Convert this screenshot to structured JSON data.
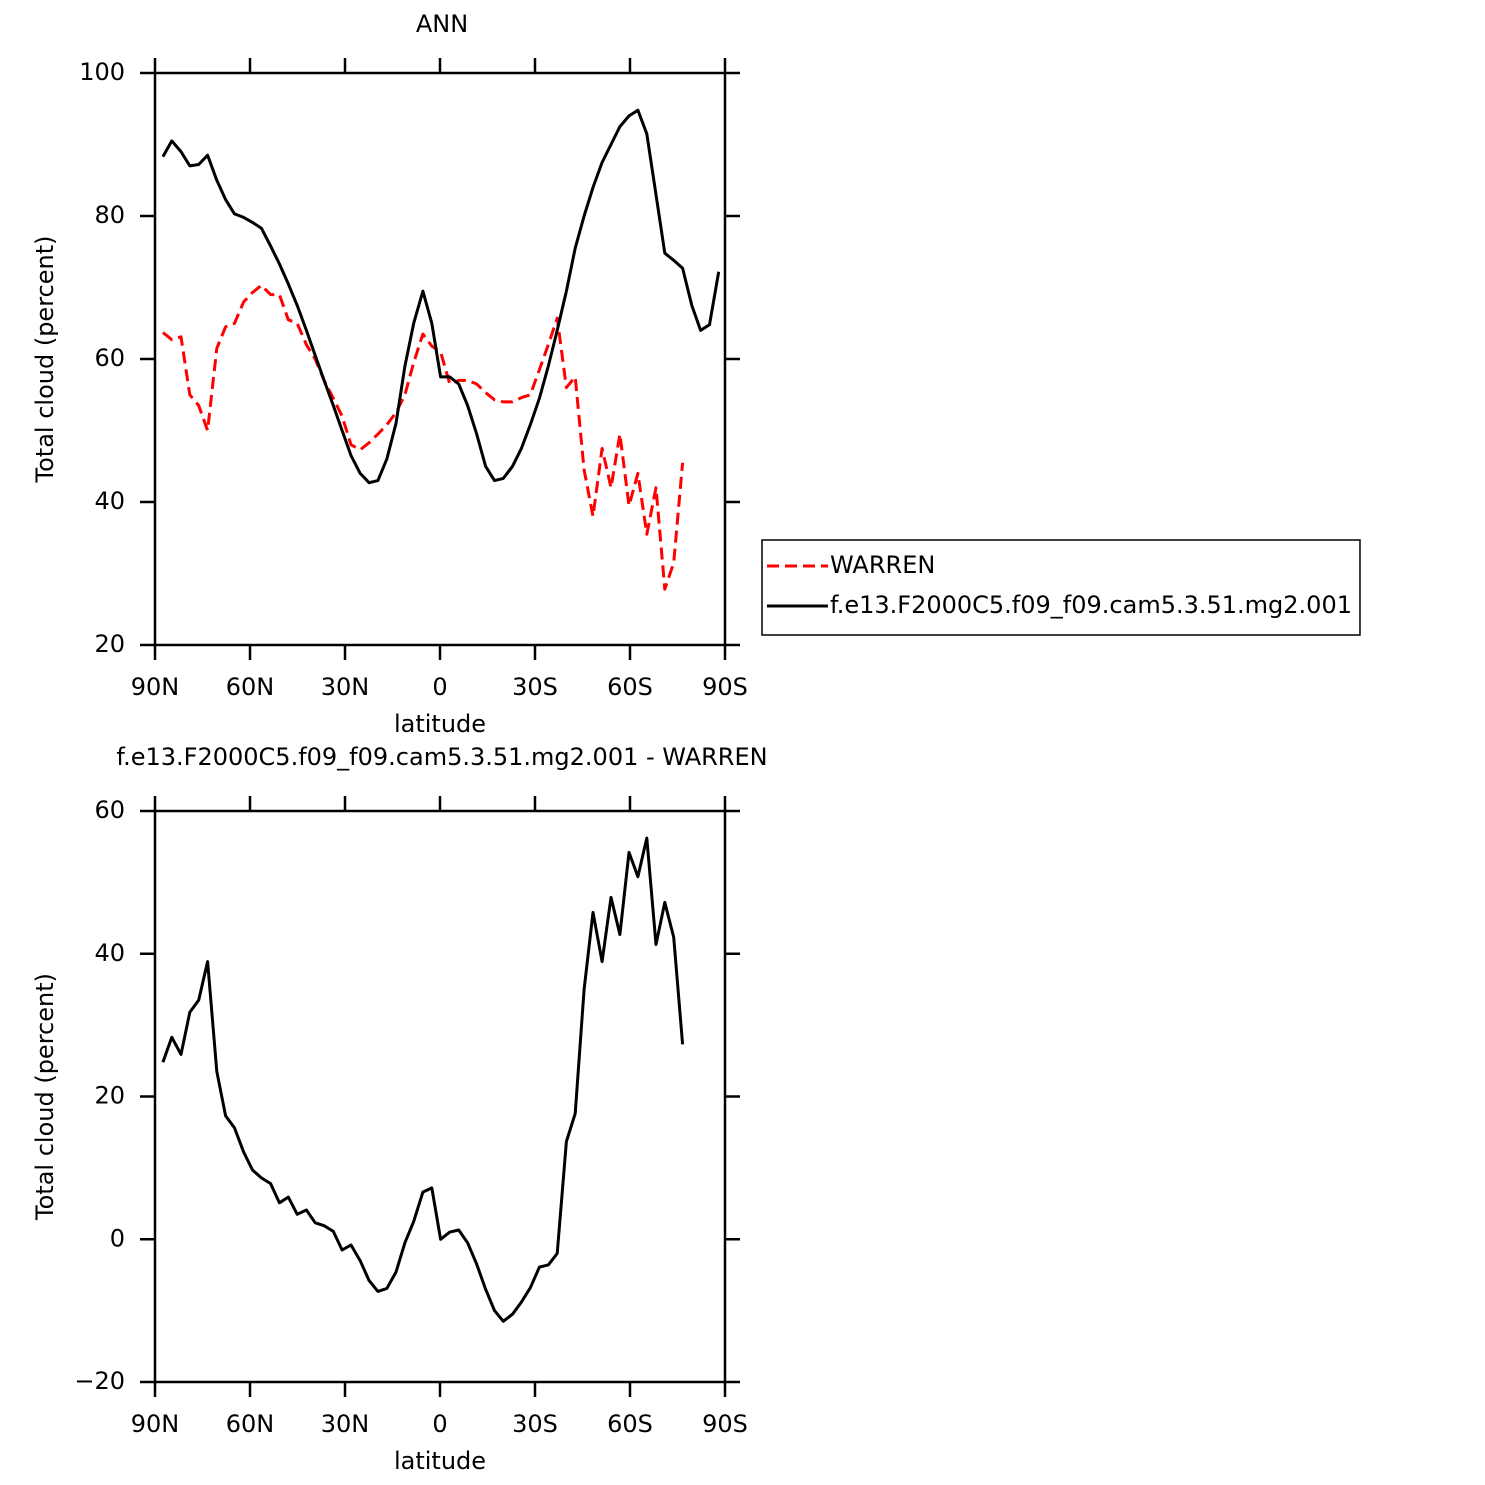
{
  "chart_data": [
    {
      "type": "line",
      "title": "ANN",
      "x_label": "latitude",
      "y_label": "Total cloud (percent)",
      "x": [
        87.5,
        84.7,
        81.8,
        79.0,
        76.2,
        73.4,
        70.5,
        67.7,
        64.9,
        62.0,
        59.2,
        56.4,
        53.5,
        50.7,
        47.9,
        45.1,
        42.2,
        39.4,
        36.6,
        33.7,
        30.9,
        28.1,
        25.2,
        22.4,
        19.6,
        16.8,
        13.9,
        11.1,
        8.3,
        5.4,
        2.6,
        -0.2,
        -3.1,
        -5.9,
        -8.7,
        -11.6,
        -14.4,
        -17.2,
        -20.0,
        -22.9,
        -25.7,
        -28.5,
        -31.4,
        -34.2,
        -37.0,
        -39.9,
        -42.7,
        -45.5,
        -48.3,
        -51.2,
        -54.0,
        -56.8,
        -59.7,
        -62.5,
        -65.3,
        -68.2,
        -71.0,
        -73.8,
        -76.6,
        -79.5,
        -82.3,
        -85.1,
        -88.0
      ],
      "xlim": [
        90,
        -90
      ],
      "xticks": [
        {
          "value": 90,
          "label": "90N"
        },
        {
          "value": 60,
          "label": "60N"
        },
        {
          "value": 30,
          "label": "30N"
        },
        0,
        {
          "value": -30,
          "label": "30S"
        },
        {
          "value": -60,
          "label": "60S"
        },
        {
          "value": -90,
          "label": "90S"
        }
      ],
      "ylim": [
        20,
        100
      ],
      "yticks": [
        20,
        40,
        60,
        80,
        100
      ],
      "legend": "outside-right",
      "series": [
        {
          "name": "WARREN",
          "color": "#ff0000",
          "dashed": true,
          "values": [
            63.7,
            62.7,
            63.1,
            55,
            53.5,
            50,
            61.5,
            64.5,
            65,
            68,
            69.3,
            70.3,
            69,
            69,
            65.5,
            65,
            62,
            60,
            57,
            54.5,
            52,
            48,
            47.3,
            48.3,
            49.5,
            50.8,
            52.5,
            55,
            59.5,
            63.5,
            61.8,
            61,
            56.5,
            57,
            57,
            56.5,
            55.3,
            54.3,
            54,
            54,
            54.6,
            55,
            58.5,
            62,
            65.7,
            56,
            57.5,
            44.5,
            38,
            47.5,
            42,
            49.5,
            39.5,
            44,
            35.5,
            42,
            27.8,
            31.5,
            45.5,
            null,
            null,
            null,
            null
          ]
        },
        {
          "name": "f.e13.F2000C5.f09_f09.cam5.3.51.mg2.001",
          "color": "#000000",
          "dashed": false,
          "values": [
            88.3,
            90.5,
            89,
            87,
            87.2,
            88.5,
            85,
            82.3,
            80.3,
            79.8,
            79.1,
            78.3,
            75.8,
            73.3,
            70.5,
            67.5,
            64,
            60.5,
            57,
            53.5,
            50,
            46.5,
            44,
            42.7,
            43,
            46,
            51,
            59,
            65,
            69.5,
            65,
            57.5,
            57.5,
            56.5,
            53.5,
            49.5,
            45,
            43,
            43.3,
            45,
            47.5,
            50.8,
            54.5,
            59,
            64,
            69.5,
            75.5,
            80,
            84,
            87.5,
            90,
            92.5,
            94,
            94.8,
            91.5,
            83,
            74.8,
            73.8,
            72.7,
            67.5,
            64,
            64.8,
            72.2
          ]
        }
      ]
    },
    {
      "type": "line",
      "title": "f.e13.F2000C5.f09_f09.cam5.3.51.mg2.001 - WARREN",
      "x_label": "latitude",
      "y_label": "Total cloud (percent)",
      "x": [
        87.5,
        84.7,
        81.8,
        79.0,
        76.2,
        73.4,
        70.5,
        67.7,
        64.9,
        62.0,
        59.2,
        56.4,
        53.5,
        50.7,
        47.9,
        45.1,
        42.2,
        39.4,
        36.6,
        33.7,
        30.9,
        28.1,
        25.2,
        22.4,
        19.6,
        16.8,
        13.9,
        11.1,
        8.3,
        5.4,
        2.6,
        -0.2,
        -3.1,
        -5.9,
        -8.7,
        -11.6,
        -14.4,
        -17.2,
        -20.0,
        -22.9,
        -25.7,
        -28.5,
        -31.4,
        -34.2,
        -37.0,
        -39.9,
        -42.7,
        -45.5,
        -48.3,
        -51.2,
        -54.0,
        -56.8,
        -59.7,
        -62.5,
        -65.3,
        -68.2,
        -71.0,
        -73.8,
        -76.6
      ],
      "xlim": [
        90,
        -90
      ],
      "xticks": [
        {
          "value": 90,
          "label": "90N"
        },
        {
          "value": 60,
          "label": "60N"
        },
        {
          "value": 30,
          "label": "30N"
        },
        0,
        {
          "value": -30,
          "label": "30S"
        },
        {
          "value": -60,
          "label": "60S"
        },
        {
          "value": -90,
          "label": "90S"
        }
      ],
      "ylim": [
        -20,
        60
      ],
      "yticks": [
        {
          "value": -20,
          "label": "−20"
        },
        0,
        20,
        40,
        60
      ],
      "series": [
        {
          "color": "#000000",
          "dashed": false,
          "values": [
            24.8,
            28.3,
            25.9,
            31.8,
            33.5,
            38.9,
            23.5,
            17.3,
            15.6,
            12.2,
            9.7,
            8.6,
            7.8,
            5.1,
            5.9,
            3.5,
            4.1,
            2.3,
            1.9,
            1.1,
            -1.5,
            -0.8,
            -3,
            -5.8,
            -7.3,
            -6.9,
            -4.6,
            -0.5,
            2.5,
            6.6,
            7.2,
            0,
            1,
            1.3,
            -0.5,
            -3.5,
            -7,
            -10,
            -11.5,
            -10.5,
            -8.8,
            -6.8,
            -3.9,
            -3.6,
            -2,
            13.7,
            17.6,
            35,
            45.8,
            38.9,
            47.9,
            42.7,
            54.2,
            50.8,
            56.2,
            41.3,
            47.2,
            42.3,
            27.3
          ]
        }
      ]
    }
  ]
}
